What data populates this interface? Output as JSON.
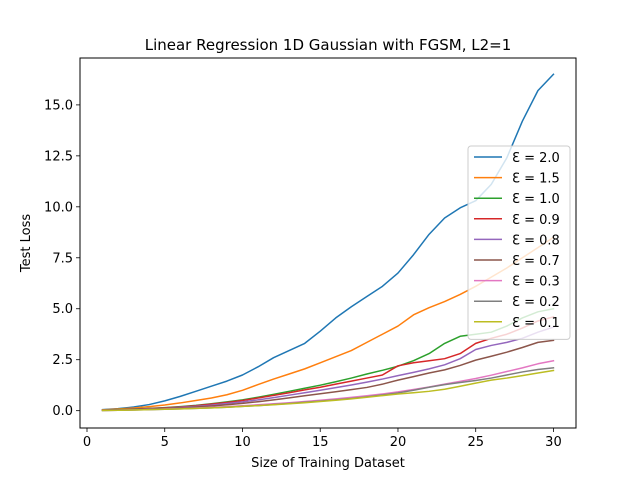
{
  "chart_data": {
    "type": "line",
    "title": "Linear Regression 1D Gaussian with FGSM, L2=1",
    "xlabel": "Size of Training Dataset",
    "ylabel": "Test Loss",
    "xlim": [
      -0.45,
      31.45
    ],
    "ylim": [
      -0.85,
      17.3
    ],
    "xticks": [
      0,
      5,
      10,
      15,
      20,
      25,
      30
    ],
    "xtick_labels": [
      "0",
      "5",
      "10",
      "15",
      "20",
      "25",
      "30"
    ],
    "yticks": [
      0.0,
      2.5,
      5.0,
      7.5,
      10.0,
      12.5,
      15.0
    ],
    "ytick_labels": [
      "0.0",
      "2.5",
      "5.0",
      "7.5",
      "10.0",
      "12.5",
      "15.0"
    ],
    "grid": false,
    "legend_position": "center-right",
    "x": [
      1,
      2,
      3,
      4,
      5,
      6,
      7,
      8,
      9,
      10,
      11,
      12,
      13,
      14,
      15,
      16,
      17,
      18,
      19,
      20,
      21,
      22,
      23,
      24,
      25,
      26,
      27,
      28,
      29,
      30
    ],
    "series": [
      {
        "name": "Ɛ = 2.0",
        "color": "#1f77b4",
        "values": [
          0.05,
          0.1,
          0.18,
          0.3,
          0.48,
          0.7,
          0.95,
          1.2,
          1.45,
          1.75,
          2.15,
          2.6,
          2.95,
          3.3,
          3.9,
          4.55,
          5.1,
          5.6,
          6.1,
          6.75,
          7.65,
          8.65,
          9.45,
          9.95,
          10.3,
          11.1,
          12.4,
          14.2,
          15.7,
          16.5
        ]
      },
      {
        "name": "Ɛ = 1.5",
        "color": "#ff7f0e",
        "values": [
          0.04,
          0.08,
          0.13,
          0.2,
          0.28,
          0.38,
          0.5,
          0.62,
          0.78,
          1.0,
          1.28,
          1.55,
          1.8,
          2.05,
          2.35,
          2.65,
          2.95,
          3.35,
          3.75,
          4.15,
          4.7,
          5.05,
          5.35,
          5.7,
          6.1,
          6.55,
          7.0,
          7.5,
          8.0,
          8.5
        ]
      },
      {
        "name": "Ɛ = 1.0",
        "color": "#2ca02c",
        "values": [
          0.02,
          0.05,
          0.08,
          0.11,
          0.15,
          0.2,
          0.26,
          0.34,
          0.43,
          0.53,
          0.66,
          0.8,
          0.95,
          1.1,
          1.25,
          1.42,
          1.6,
          1.8,
          1.98,
          2.18,
          2.45,
          2.8,
          3.3,
          3.65,
          3.75,
          3.85,
          4.15,
          4.55,
          4.85,
          5.0
        ]
      },
      {
        "name": "Ɛ = 0.9",
        "color": "#d62728",
        "values": [
          0.02,
          0.04,
          0.07,
          0.1,
          0.14,
          0.18,
          0.24,
          0.32,
          0.4,
          0.5,
          0.62,
          0.75,
          0.88,
          1.02,
          1.15,
          1.3,
          1.45,
          1.6,
          1.75,
          2.2,
          2.35,
          2.45,
          2.55,
          2.8,
          3.3,
          3.55,
          3.75,
          4.05,
          4.4,
          4.6
        ]
      },
      {
        "name": "Ɛ = 0.8",
        "color": "#9467bd",
        "values": [
          0.02,
          0.04,
          0.06,
          0.09,
          0.12,
          0.16,
          0.21,
          0.27,
          0.35,
          0.43,
          0.53,
          0.64,
          0.76,
          0.88,
          1.0,
          1.13,
          1.26,
          1.4,
          1.55,
          1.72,
          1.88,
          2.05,
          2.25,
          2.55,
          3.0,
          3.2,
          3.35,
          3.55,
          3.85,
          4.1
        ]
      },
      {
        "name": "Ɛ = 0.7",
        "color": "#8c564b",
        "values": [
          0.02,
          0.03,
          0.05,
          0.08,
          0.11,
          0.14,
          0.18,
          0.23,
          0.29,
          0.36,
          0.44,
          0.53,
          0.63,
          0.73,
          0.83,
          0.93,
          1.03,
          1.14,
          1.3,
          1.5,
          1.67,
          1.85,
          2.0,
          2.22,
          2.48,
          2.67,
          2.87,
          3.1,
          3.35,
          3.45
        ]
      },
      {
        "name": "Ɛ = 0.3",
        "color": "#e377c2",
        "values": [
          0.01,
          0.02,
          0.04,
          0.06,
          0.08,
          0.1,
          0.13,
          0.16,
          0.2,
          0.24,
          0.29,
          0.34,
          0.39,
          0.45,
          0.51,
          0.58,
          0.65,
          0.73,
          0.82,
          0.92,
          1.04,
          1.16,
          1.3,
          1.44,
          1.58,
          1.74,
          1.92,
          2.1,
          2.3,
          2.45
        ]
      },
      {
        "name": "Ɛ = 0.2",
        "color": "#7f7f7f",
        "values": [
          0.01,
          0.02,
          0.03,
          0.05,
          0.07,
          0.09,
          0.11,
          0.14,
          0.17,
          0.21,
          0.25,
          0.3,
          0.35,
          0.41,
          0.47,
          0.53,
          0.6,
          0.68,
          0.77,
          0.87,
          1.0,
          1.15,
          1.28,
          1.38,
          1.48,
          1.6,
          1.75,
          1.9,
          2.02,
          2.1
        ]
      },
      {
        "name": "Ɛ = 0.1",
        "color": "#bcbd22",
        "values": [
          0.01,
          0.02,
          0.03,
          0.05,
          0.07,
          0.09,
          0.11,
          0.14,
          0.17,
          0.21,
          0.25,
          0.29,
          0.34,
          0.39,
          0.45,
          0.51,
          0.58,
          0.66,
          0.74,
          0.82,
          0.88,
          0.95,
          1.05,
          1.2,
          1.35,
          1.5,
          1.6,
          1.72,
          1.85,
          1.97
        ]
      }
    ]
  }
}
